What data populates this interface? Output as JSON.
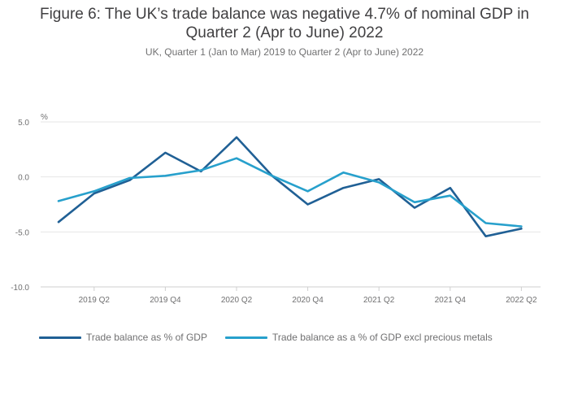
{
  "title_line1": "Figure 6: The UK’s trade balance was negative 4.7% of nominal GDP in",
  "title_line2": "Quarter 2 (Apr to June) 2022",
  "subtitle": "UK, Quarter 1 (Jan to Mar) 2019 to Quarter 2 (Apr to June) 2022",
  "colors": {
    "series1": "#206095",
    "series2": "#27a0cc",
    "grid": "#e6e6e6",
    "text": "#707071"
  },
  "chart_data": {
    "type": "line",
    "title": "Figure 6: The UK’s trade balance was negative 4.7% of nominal GDP in Quarter 2 (Apr to June) 2022",
    "subtitle": "UK, Quarter 1 (Jan to Mar) 2019 to Quarter 2 (Apr to June) 2022",
    "ylabel": "%",
    "xlabel": "",
    "ylim": [
      -10,
      5
    ],
    "yticks": [
      5.0,
      0.0,
      -5.0,
      -10.0
    ],
    "ytick_labels": [
      "5.0",
      "0.0",
      "-5.0",
      "-10.0"
    ],
    "x": [
      "2019 Q1",
      "2019 Q2",
      "2019 Q3",
      "2019 Q4",
      "2020 Q1",
      "2020 Q2",
      "2020 Q3",
      "2020 Q4",
      "2021 Q1",
      "2021 Q2",
      "2021 Q3",
      "2021 Q4",
      "2022 Q1",
      "2022 Q2"
    ],
    "xtick_labels": [
      "2019 Q2",
      "2019 Q4",
      "2020 Q2",
      "2020 Q4",
      "2021 Q2",
      "2021 Q4",
      "2022 Q2"
    ],
    "grid": true,
    "legend_position": "bottom",
    "series": [
      {
        "name": "Trade balance as % of GDP",
        "values": [
          -4.1,
          -1.5,
          -0.3,
          2.2,
          0.5,
          3.6,
          0.1,
          -2.5,
          -1.0,
          -0.2,
          -2.8,
          -1.0,
          -5.4,
          -4.7
        ]
      },
      {
        "name": "Trade balance as a % of GDP excl precious metals",
        "values": [
          -2.2,
          -1.3,
          -0.1,
          0.1,
          0.6,
          1.7,
          0.1,
          -1.3,
          0.4,
          -0.5,
          -2.3,
          -1.7,
          -4.2,
          -4.5
        ]
      }
    ]
  }
}
